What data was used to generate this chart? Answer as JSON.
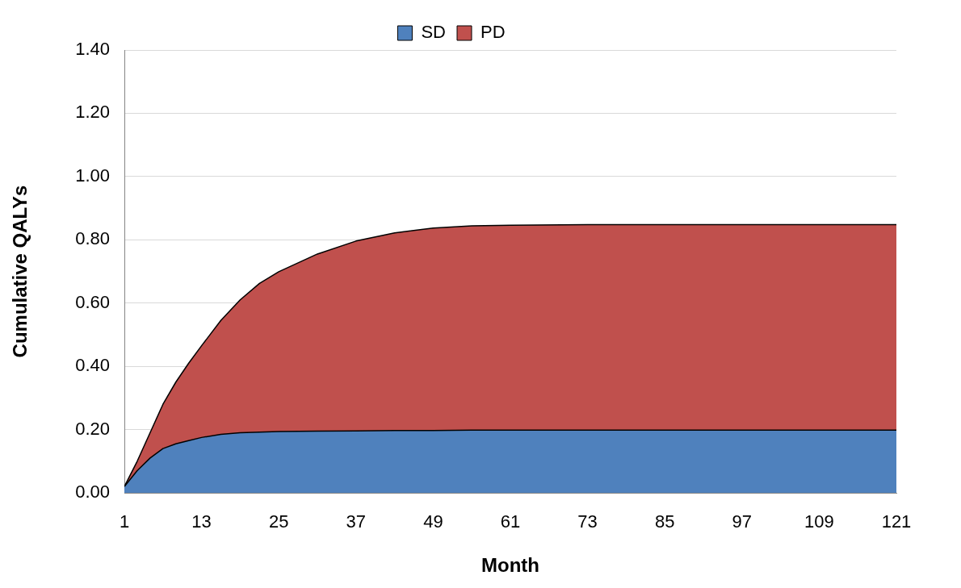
{
  "chart_data": {
    "type": "area",
    "stacked": true,
    "xlabel": "Month",
    "ylabel": "Cumulative QALYs",
    "x": [
      1,
      3,
      5,
      7,
      9,
      11,
      13,
      16,
      19,
      22,
      25,
      31,
      37,
      43,
      49,
      55,
      61,
      73,
      85,
      97,
      109,
      121
    ],
    "series": [
      {
        "name": "SD",
        "color": "#4f81bd",
        "values": [
          0.02,
          0.07,
          0.11,
          0.14,
          0.155,
          0.165,
          0.175,
          0.185,
          0.19,
          0.192,
          0.194,
          0.195,
          0.196,
          0.197,
          0.197,
          0.198,
          0.198,
          0.198,
          0.198,
          0.198,
          0.198,
          0.198
        ]
      },
      {
        "name": "PD",
        "color": "#c0504d",
        "values": [
          0.0,
          0.03,
          0.08,
          0.14,
          0.195,
          0.245,
          0.29,
          0.36,
          0.42,
          0.47,
          0.505,
          0.56,
          0.6,
          0.625,
          0.64,
          0.646,
          0.648,
          0.65,
          0.65,
          0.65,
          0.65,
          0.65
        ]
      }
    ],
    "xlim": [
      1,
      121
    ],
    "xticks": [
      1,
      13,
      25,
      37,
      49,
      61,
      73,
      85,
      97,
      109,
      121
    ],
    "ylim": [
      0,
      1.4
    ],
    "yticks": [
      {
        "value": 0,
        "label": "0.00"
      },
      {
        "value": 0.2,
        "label": "0.20"
      },
      {
        "value": 0.4,
        "label": "0.40"
      },
      {
        "value": 0.6,
        "label": "0.60"
      },
      {
        "value": 0.8,
        "label": "0.80"
      },
      {
        "value": 1.0,
        "label": "1.00"
      },
      {
        "value": 1.2,
        "label": "1.20"
      },
      {
        "value": 1.4,
        "label": "1.40"
      }
    ],
    "grid": "y",
    "legend": "top",
    "marker": "none",
    "line_style": "solid"
  }
}
